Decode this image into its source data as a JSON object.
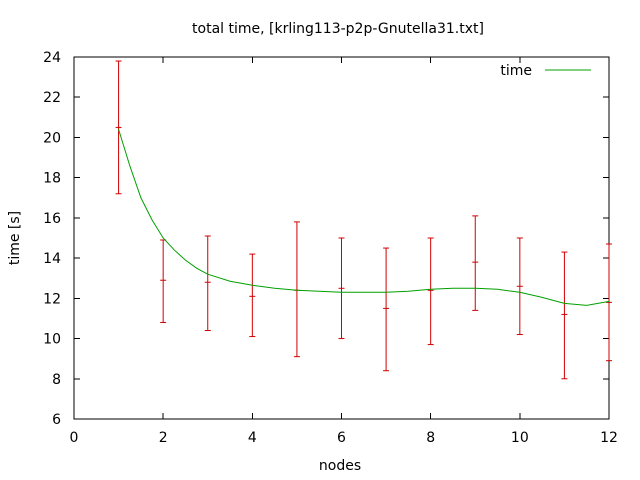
{
  "chart_data": {
    "type": "line",
    "title": "total time, [krling113-p2p-Gnutella31.txt]",
    "xlabel": "nodes",
    "ylabel": "time [s]",
    "xlim": [
      0,
      12
    ],
    "ylim": [
      6,
      24
    ],
    "xticks": [
      0,
      2,
      4,
      6,
      8,
      10,
      12
    ],
    "yticks": [
      6,
      8,
      10,
      12,
      14,
      16,
      18,
      20,
      22,
      24
    ],
    "grid": false,
    "legend_position": "top-right",
    "series": [
      {
        "name": "time",
        "kind": "smooth-line",
        "color": "#00a000",
        "x": [
          1,
          1.25,
          1.5,
          1.75,
          2,
          2.25,
          2.5,
          2.75,
          3,
          3.5,
          4,
          4.5,
          5,
          5.5,
          6,
          6.5,
          7,
          7.5,
          8,
          8.5,
          9,
          9.5,
          10,
          10.5,
          11,
          11.5,
          12
        ],
        "y": [
          20.4,
          18.6,
          17.0,
          15.9,
          15.0,
          14.4,
          13.9,
          13.5,
          13.2,
          12.85,
          12.65,
          12.5,
          12.4,
          12.35,
          12.3,
          12.3,
          12.3,
          12.35,
          12.45,
          12.5,
          12.5,
          12.45,
          12.3,
          12.05,
          11.75,
          11.65,
          11.85
        ]
      },
      {
        "name": "",
        "kind": "errorbars",
        "color": "#d00000",
        "points": [
          {
            "x": 1,
            "y": 20.5,
            "low": 17.2,
            "high": 23.8
          },
          {
            "x": 2,
            "y": 12.9,
            "low": 10.8,
            "high": 14.9
          },
          {
            "x": 3,
            "y": 12.8,
            "low": 10.4,
            "high": 15.1
          },
          {
            "x": 4,
            "y": 12.1,
            "low": 10.1,
            "high": 14.2
          },
          {
            "x": 5,
            "y": 12.4,
            "low": 9.1,
            "high": 15.8
          },
          {
            "x": 6,
            "y": 12.5,
            "low": 10.0,
            "high": 15.0
          },
          {
            "x": 7,
            "y": 11.5,
            "low": 8.4,
            "high": 14.5
          },
          {
            "x": 8,
            "y": 12.4,
            "low": 9.7,
            "high": 15.0
          },
          {
            "x": 9,
            "y": 13.8,
            "low": 11.4,
            "high": 16.1
          },
          {
            "x": 10,
            "y": 12.6,
            "low": 10.2,
            "high": 15.0
          },
          {
            "x": 11,
            "y": 11.2,
            "low": 8.0,
            "high": 14.3
          },
          {
            "x": 12,
            "y": 11.8,
            "low": 8.9,
            "high": 14.7
          }
        ]
      }
    ]
  }
}
